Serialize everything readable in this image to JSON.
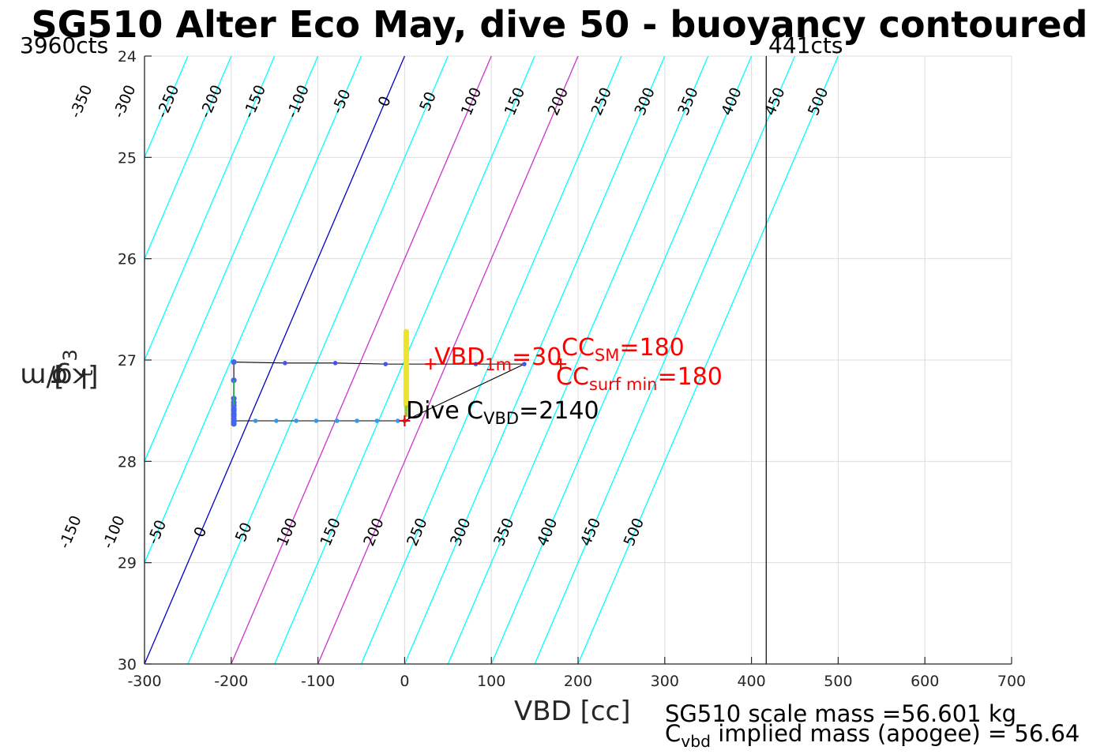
{
  "title": "SG510 Alter Eco May, dive 50 - buoyancy contoured",
  "left_counts": "3960cts",
  "right_counts": "441cts",
  "mass_note": "SG510 scale mass =56.601 kg",
  "implied_note": {
    "prefix": "C",
    "sub": "vbd",
    "rest": " implied mass (apogee) = 56.64"
  },
  "colors": {
    "contour": "#00FFFF",
    "zero_contour": "#0000CC",
    "hundred_contours": "#CC33CC",
    "annotation": "#FF0000",
    "grid": "#DDDDDD"
  },
  "chart_data": {
    "type": "scatter",
    "xlabel": "VBD [cc]",
    "ylabel": {
      "symbol": "σ",
      "sub": "t",
      "units_prefix": "[kg/m",
      "units_sup": "3",
      "units_suffix": "]"
    },
    "xlim": [
      -300,
      700
    ],
    "ylim": [
      30,
      24
    ],
    "grid": true,
    "x_ticks": [
      -300,
      -200,
      -100,
      0,
      100,
      200,
      300,
      400,
      500,
      600,
      700
    ],
    "y_ticks": [
      24,
      25,
      26,
      27,
      28,
      29,
      30
    ],
    "vbd_limits": {
      "min_cc": -197,
      "max_cc": 417
    },
    "contours": {
      "levels": [
        -350,
        -300,
        -250,
        -200,
        -150,
        -100,
        -50,
        0,
        50,
        100,
        150,
        200,
        250,
        300,
        350,
        400,
        450,
        500
      ],
      "vbd_at_sigma24": [
        -350,
        -300,
        -250,
        -200,
        -150,
        -100,
        -50,
        0,
        50,
        100,
        150,
        200,
        250,
        300,
        350,
        400,
        450,
        500
      ],
      "vbd_at_sigma30": [
        -650,
        -600,
        -550,
        -500,
        -450,
        -400,
        -350,
        -300,
        -250,
        -200,
        -150,
        -100,
        -50,
        0,
        50,
        100,
        150,
        200
      ],
      "vbd_per_sigma_unit": -50,
      "upper_labels": [
        -350,
        -300,
        -250,
        -200,
        -150,
        -100,
        -50,
        0,
        50,
        100,
        150,
        200,
        250,
        300,
        350,
        400,
        450,
        500
      ],
      "lower_labels": [
        -150,
        -100,
        -50,
        0,
        50,
        100,
        150,
        200,
        250,
        300,
        350,
        400,
        450,
        500
      ]
    },
    "dive_path": [
      {
        "x": -197,
        "y": 27.02
      },
      {
        "x": -138,
        "y": 27.03
      },
      {
        "x": -80,
        "y": 27.03
      },
      {
        "x": -22,
        "y": 27.04
      },
      {
        "x": 82,
        "y": 27.04
      },
      {
        "x": 138,
        "y": 27.04
      },
      {
        "x": 0,
        "y": 27.6
      },
      {
        "x": -8,
        "y": 27.6
      },
      {
        "x": -32,
        "y": 27.6
      },
      {
        "x": -55,
        "y": 27.6
      },
      {
        "x": -78,
        "y": 27.6
      },
      {
        "x": -102,
        "y": 27.6
      },
      {
        "x": -125,
        "y": 27.6
      },
      {
        "x": -148,
        "y": 27.6
      },
      {
        "x": -172,
        "y": 27.6
      },
      {
        "x": -197,
        "y": 27.6
      },
      {
        "x": -197,
        "y": 27.02
      }
    ],
    "surface_points_x": -197,
    "surface_points_y": [
      27.02,
      27.2,
      27.38,
      27.42,
      27.45,
      27.48,
      27.5,
      27.53,
      27.55,
      27.58,
      27.61,
      27.63
    ],
    "yellow_band": {
      "x": 0,
      "y_top": 26.72,
      "y_bottom": 27.45
    },
    "markers": [
      {
        "x": 0,
        "y": 27.6
      },
      {
        "x": 30,
        "y": 27.04
      },
      {
        "x": 180,
        "y": 27.04
      }
    ],
    "annotations": {
      "vbd_1m": {
        "prefix": "VBD",
        "sub": "1m",
        "rest": "=30"
      },
      "cc_sm": {
        "prefix": "CC",
        "sub": "SM",
        "rest": "=180"
      },
      "cc_surf_min": {
        "prefix": "CC",
        "sub": "surf min",
        "rest": "=180"
      },
      "dive_cvbd": {
        "prefix": "Dive C",
        "sub": "VBD",
        "rest": "=2140"
      }
    }
  }
}
